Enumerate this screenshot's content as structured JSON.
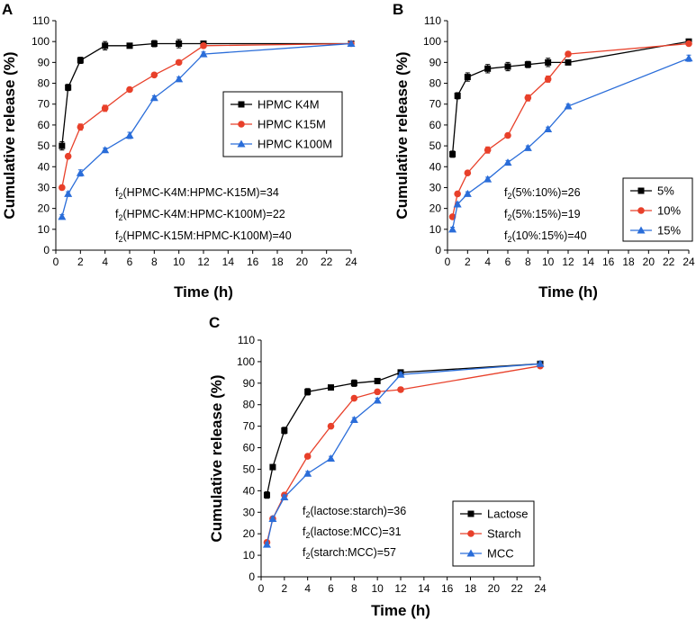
{
  "colors": {
    "black": "#000000",
    "red": "#e8402a",
    "blue": "#2a6dd9",
    "purple": "#6a4fb0"
  },
  "chart_data": [
    {
      "panel": "A",
      "type": "line",
      "xlabel": "Time (h)",
      "ylabel": "Cumulative release (%)",
      "xlim": [
        0,
        24
      ],
      "ylim": [
        0,
        110
      ],
      "xticks": [
        0,
        2,
        4,
        6,
        8,
        10,
        12,
        14,
        16,
        18,
        20,
        22,
        24
      ],
      "yticks": [
        0,
        10,
        20,
        30,
        40,
        50,
        60,
        70,
        80,
        90,
        100,
        110
      ],
      "legend_position": "center-right",
      "series": [
        {
          "name": "HPMC K4M",
          "color": "#000000",
          "marker": "square",
          "x": [
            0.5,
            1,
            2,
            4,
            6,
            8,
            10,
            12,
            24
          ],
          "y": [
            50,
            78,
            91,
            98,
            98,
            99,
            99,
            99,
            99
          ],
          "err": [
            2,
            1.5,
            1.5,
            2,
            1,
            1.5,
            2,
            1,
            1
          ]
        },
        {
          "name": "HPMC K15M",
          "color": "#e8402a",
          "marker": "circle",
          "x": [
            0.5,
            1,
            2,
            4,
            6,
            8,
            10,
            12,
            24
          ],
          "y": [
            30,
            45,
            59,
            68,
            77,
            84,
            90,
            98,
            99
          ],
          "err": [
            1,
            1,
            1.5,
            1.5,
            1,
            1,
            1,
            1,
            1
          ]
        },
        {
          "name": "HPMC K100M",
          "color": "#2a6dd9",
          "marker": "triangle",
          "x": [
            0.5,
            1,
            2,
            4,
            6,
            8,
            10,
            12,
            24
          ],
          "y": [
            16,
            27,
            37,
            48,
            55,
            73,
            82,
            94,
            99
          ],
          "err": [
            1,
            1,
            1.5,
            1,
            1.5,
            1,
            1,
            1,
            1
          ]
        }
      ],
      "annotations": [
        {
          "pre": "f",
          "sub": "2",
          "post": "(HPMC-K4M:HPMC-K15M)=34"
        },
        {
          "pre": "f",
          "sub": "2",
          "post": "(HPMC-K4M:HPMC-K100M)=22"
        },
        {
          "pre": "f",
          "sub": "2",
          "post": "(HPMC-K15M:HPMC-K100M)=40"
        }
      ]
    },
    {
      "panel": "B",
      "type": "line",
      "xlabel": "Time (h)",
      "ylabel": "Cumulative release (%)",
      "xlim": [
        0,
        24
      ],
      "ylim": [
        0,
        110
      ],
      "xticks": [
        0,
        2,
        4,
        6,
        8,
        10,
        12,
        14,
        16,
        18,
        20,
        22,
        24
      ],
      "yticks": [
        0,
        10,
        20,
        30,
        40,
        50,
        60,
        70,
        80,
        90,
        100,
        110
      ],
      "legend_position": "lower-right",
      "series": [
        {
          "name": "5%",
          "color": "#000000",
          "marker": "square",
          "x": [
            0.5,
            1,
            2,
            4,
            6,
            8,
            10,
            12,
            24
          ],
          "y": [
            46,
            74,
            83,
            87,
            88,
            89,
            90,
            90,
            100
          ],
          "err": [
            1.5,
            1.5,
            2,
            2,
            2,
            1.5,
            2,
            1,
            1
          ]
        },
        {
          "name": "10%",
          "color": "#e8402a",
          "marker": "circle",
          "x": [
            0.5,
            1,
            2,
            4,
            6,
            8,
            10,
            12,
            24
          ],
          "y": [
            16,
            27,
            37,
            48,
            55,
            73,
            82,
            94,
            99
          ],
          "err": [
            1,
            1,
            1,
            1.5,
            1,
            1.5,
            1.5,
            1,
            1
          ]
        },
        {
          "name": "15%",
          "color": "#2a6dd9",
          "marker": "triangle",
          "x": [
            0.5,
            1,
            2,
            4,
            6,
            8,
            10,
            12,
            24
          ],
          "y": [
            10,
            22,
            27,
            34,
            42,
            49,
            58,
            69,
            92
          ],
          "err": [
            1,
            1,
            1,
            1,
            1,
            1,
            1,
            1,
            1.5
          ]
        }
      ],
      "annotations": [
        {
          "pre": "f",
          "sub": "2",
          "post": "(5%:10%)=26"
        },
        {
          "pre": "f",
          "sub": "2",
          "post": "(5%:15%)=19"
        },
        {
          "pre": "f",
          "sub": "2",
          "post": "(10%:15%)=40"
        }
      ]
    },
    {
      "panel": "C",
      "type": "line",
      "xlabel": "Time (h)",
      "ylabel": "Cumulative release (%)",
      "xlim": [
        0,
        24
      ],
      "ylim": [
        0,
        110
      ],
      "xticks": [
        0,
        2,
        4,
        6,
        8,
        10,
        12,
        14,
        16,
        18,
        20,
        22,
        24
      ],
      "yticks": [
        0,
        10,
        20,
        30,
        40,
        50,
        60,
        70,
        80,
        90,
        100,
        110
      ],
      "legend_position": "lower-right",
      "series": [
        {
          "name": "Lactose",
          "color": "#000000",
          "marker": "square",
          "x": [
            0.5,
            1,
            2,
            4,
            6,
            8,
            10,
            12,
            24
          ],
          "y": [
            38,
            51,
            68,
            86,
            88,
            90,
            91,
            95,
            99
          ],
          "err": [
            1.5,
            1,
            1.5,
            1.5,
            1,
            1.5,
            1,
            1,
            1
          ]
        },
        {
          "name": "Starch",
          "color": "#e8402a",
          "marker": "circle",
          "x": [
            0.5,
            1,
            2,
            4,
            6,
            8,
            10,
            12,
            24
          ],
          "y": [
            16,
            27,
            38,
            56,
            70,
            83,
            86,
            87,
            98
          ],
          "err": [
            1,
            1,
            1,
            1,
            1,
            1,
            1,
            1,
            1
          ]
        },
        {
          "name": "MCC",
          "color": "#2a6dd9",
          "marker": "triangle",
          "x": [
            0.5,
            1,
            2,
            4,
            6,
            8,
            10,
            12,
            24
          ],
          "y": [
            15,
            27,
            37,
            48,
            55,
            73,
            82,
            94,
            99
          ],
          "err": [
            1,
            1,
            1,
            1,
            1,
            1,
            1,
            1,
            1
          ]
        }
      ],
      "annotations": [
        {
          "pre": "f",
          "sub": "2",
          "post": "(lactose:starch)=36"
        },
        {
          "pre": "f",
          "sub": "2",
          "post": "(lactose:MCC)=31"
        },
        {
          "pre": "f",
          "sub": "2",
          "post": "(starch:MCC)=57"
        }
      ]
    }
  ]
}
